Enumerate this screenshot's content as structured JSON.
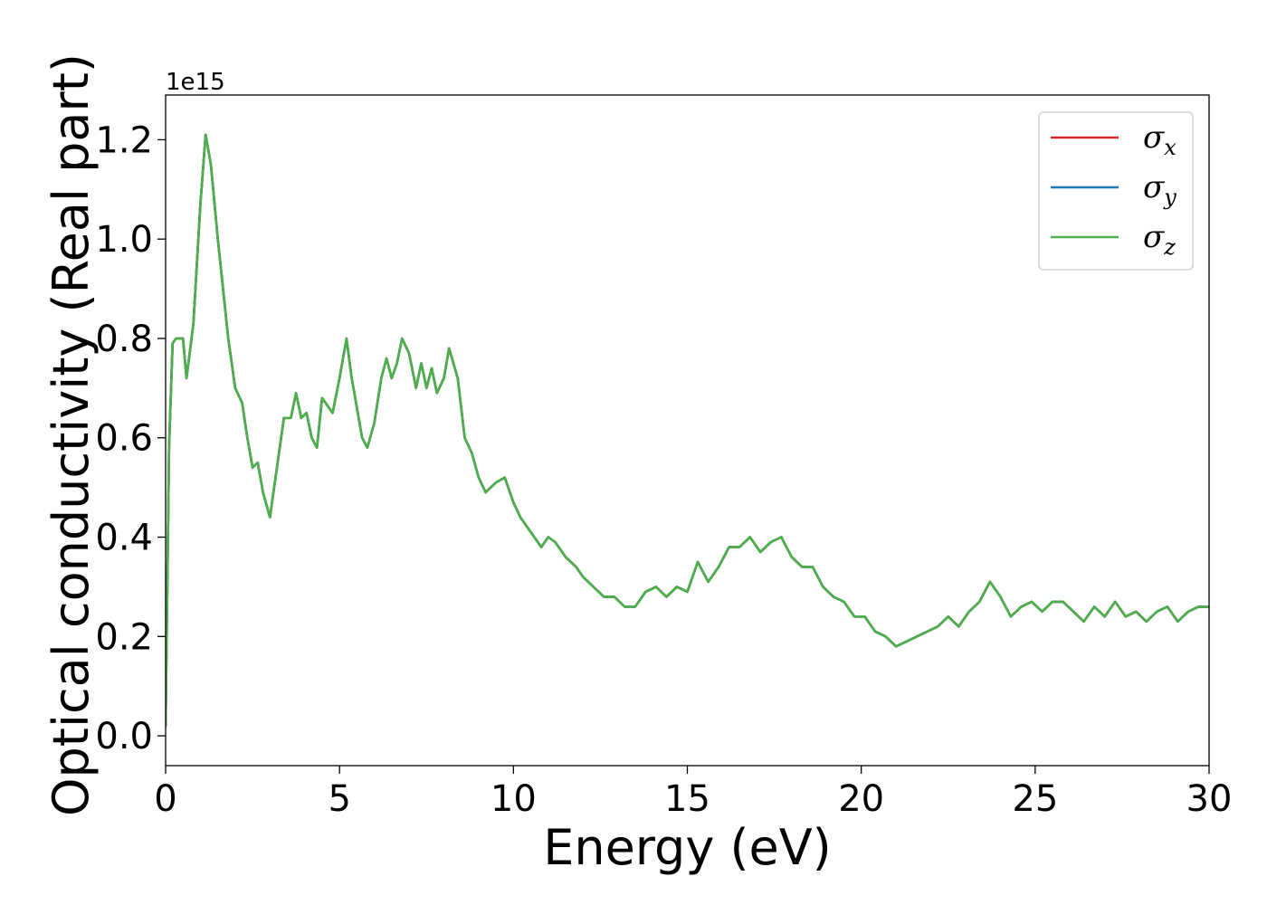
{
  "chart_data": {
    "type": "line",
    "title": "",
    "xlabel": "Energy (eV)",
    "ylabel": "Optical conductivity (Real part)",
    "y_offset_text": "1e15",
    "xlim": [
      0,
      30
    ],
    "ylim": [
      -0.06,
      1.29
    ],
    "xticks": [
      0,
      5,
      10,
      15,
      20,
      25,
      30
    ],
    "xtick_labels": [
      "0",
      "5",
      "10",
      "15",
      "20",
      "25",
      "30"
    ],
    "yticks": [
      0.0,
      0.2,
      0.4,
      0.6,
      0.8,
      1.0,
      1.2
    ],
    "ytick_labels": [
      "0.0",
      "0.2",
      "0.4",
      "0.6",
      "0.8",
      "1.0",
      "1.2"
    ],
    "grid": false,
    "legend_position": "top-right",
    "series": [
      {
        "name": "σx",
        "symbol": "σ",
        "subscript": "x",
        "color": "#d62728"
      },
      {
        "name": "σy",
        "symbol": "σ",
        "subscript": "y",
        "color": "#1f77b4"
      },
      {
        "name": "σz",
        "symbol": "σ",
        "subscript": "z",
        "color": "#4daf4a"
      }
    ],
    "x": [
      0.0,
      0.1,
      0.2,
      0.3,
      0.5,
      0.6,
      0.8,
      1.0,
      1.15,
      1.3,
      1.5,
      1.8,
      2.0,
      2.2,
      2.35,
      2.5,
      2.65,
      2.8,
      3.0,
      3.2,
      3.4,
      3.6,
      3.75,
      3.9,
      4.05,
      4.2,
      4.35,
      4.5,
      4.7,
      4.8,
      5.0,
      5.2,
      5.35,
      5.5,
      5.65,
      5.8,
      6.0,
      6.2,
      6.35,
      6.5,
      6.65,
      6.8,
      7.0,
      7.2,
      7.35,
      7.5,
      7.65,
      7.8,
      8.0,
      8.15,
      8.4,
      8.6,
      8.8,
      9.0,
      9.2,
      9.5,
      9.75,
      10.0,
      10.2,
      10.5,
      10.8,
      11.0,
      11.2,
      11.5,
      11.8,
      12.0,
      12.3,
      12.6,
      12.9,
      13.2,
      13.5,
      13.8,
      14.1,
      14.4,
      14.7,
      15.0,
      15.3,
      15.6,
      15.9,
      16.2,
      16.5,
      16.8,
      17.1,
      17.4,
      17.7,
      18.0,
      18.3,
      18.6,
      18.9,
      19.2,
      19.5,
      19.8,
      20.1,
      20.4,
      20.7,
      21.0,
      21.3,
      21.6,
      21.9,
      22.2,
      22.5,
      22.8,
      23.1,
      23.4,
      23.7,
      24.0,
      24.3,
      24.6,
      24.9,
      25.2,
      25.5,
      25.8,
      26.1,
      26.4,
      26.7,
      27.0,
      27.3,
      27.6,
      27.9,
      28.2,
      28.5,
      28.8,
      29.1,
      29.4,
      29.7,
      30.0
    ],
    "y": [
      0.02,
      0.58,
      0.79,
      0.8,
      0.8,
      0.72,
      0.83,
      1.07,
      1.21,
      1.15,
      1.0,
      0.8,
      0.7,
      0.67,
      0.6,
      0.54,
      0.55,
      0.49,
      0.44,
      0.54,
      0.64,
      0.64,
      0.69,
      0.64,
      0.65,
      0.6,
      0.58,
      0.68,
      0.66,
      0.65,
      0.72,
      0.8,
      0.72,
      0.66,
      0.6,
      0.58,
      0.63,
      0.72,
      0.76,
      0.72,
      0.75,
      0.8,
      0.77,
      0.7,
      0.75,
      0.7,
      0.74,
      0.69,
      0.72,
      0.78,
      0.72,
      0.6,
      0.57,
      0.52,
      0.49,
      0.51,
      0.52,
      0.47,
      0.44,
      0.41,
      0.38,
      0.4,
      0.39,
      0.36,
      0.34,
      0.32,
      0.3,
      0.28,
      0.28,
      0.26,
      0.26,
      0.29,
      0.3,
      0.28,
      0.3,
      0.29,
      0.35,
      0.31,
      0.34,
      0.38,
      0.38,
      0.4,
      0.37,
      0.39,
      0.4,
      0.36,
      0.34,
      0.34,
      0.3,
      0.28,
      0.27,
      0.24,
      0.24,
      0.21,
      0.2,
      0.18,
      0.19,
      0.2,
      0.21,
      0.22,
      0.24,
      0.22,
      0.25,
      0.27,
      0.31,
      0.28,
      0.24,
      0.26,
      0.27,
      0.25,
      0.27,
      0.27,
      0.25,
      0.23,
      0.26,
      0.24,
      0.27,
      0.24,
      0.25,
      0.23,
      0.25,
      0.26,
      0.23,
      0.25,
      0.26,
      0.26
    ]
  }
}
